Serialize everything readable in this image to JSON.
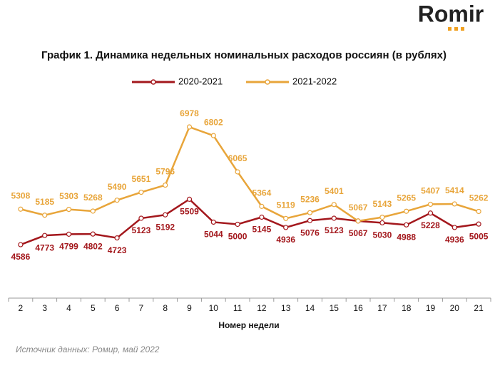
{
  "logo": "Romir",
  "source": "Источник данных: Ромир, май 2022",
  "chart_data": {
    "type": "line",
    "title": "График 1. Динамика недельных номинальных расходов россиян (в рублях)",
    "x_label": "Номер недели",
    "categories": [
      "2",
      "3",
      "4",
      "5",
      "6",
      "7",
      "8",
      "9",
      "10",
      "11",
      "12",
      "13",
      "14",
      "15",
      "16",
      "17",
      "18",
      "19",
      "20",
      "21"
    ],
    "series": [
      {
        "name": "2020-2021",
        "color": "#a3171c",
        "values": [
          4586,
          4773,
          4799,
          4802,
          4723,
          5123,
          5192,
          5509,
          5044,
          5000,
          5145,
          4936,
          5076,
          5123,
          5067,
          5030,
          4988,
          5228,
          4936,
          5005
        ]
      },
      {
        "name": "2021-2022",
        "color": "#e8a53a",
        "values": [
          5308,
          5185,
          5303,
          5268,
          5490,
          5651,
          5796,
          6978,
          6802,
          6065,
          5364,
          5119,
          5236,
          5401,
          5067,
          5143,
          5265,
          5407,
          5414,
          5262
        ]
      }
    ],
    "ylim": [
      3500,
      7500
    ]
  }
}
